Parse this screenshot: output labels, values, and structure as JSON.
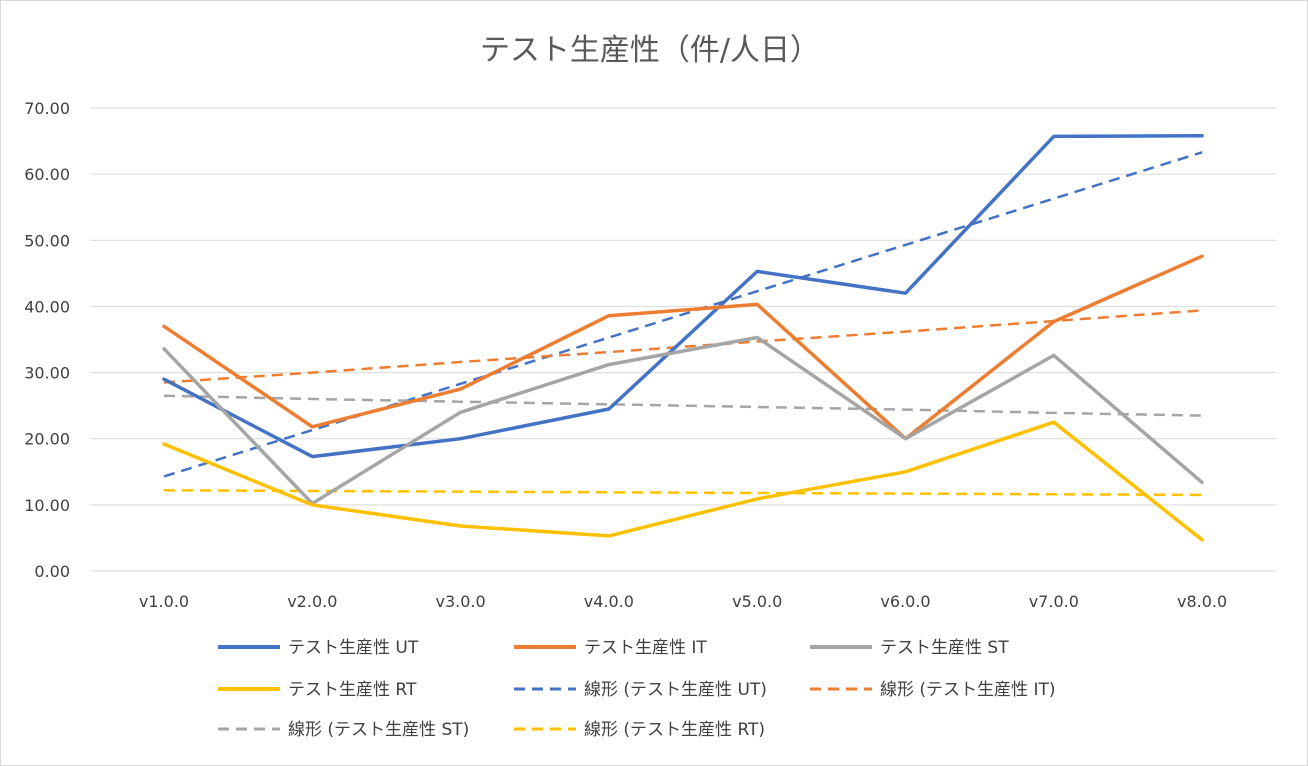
{
  "chart_data": {
    "type": "line",
    "title": "テスト生産性（件/人日）",
    "xlabel": "",
    "ylabel": "",
    "categories": [
      "v1.0.0",
      "v2.0.0",
      "v3.0.0",
      "v4.0.0",
      "v5.0.0",
      "v6.0.0",
      "v7.0.0",
      "v8.0.0"
    ],
    "ylim": [
      0,
      70
    ],
    "yticks": [
      "0.00",
      "10.00",
      "20.00",
      "30.00",
      "40.00",
      "50.00",
      "60.00",
      "70.00"
    ],
    "grid": true,
    "legend_position": "bottom",
    "series": [
      {
        "name": "テスト生産性 UT",
        "color": "#4472C4",
        "style": "solid",
        "values": [
          29.0,
          17.3,
          20.0,
          24.5,
          45.3,
          42.0,
          65.7,
          65.8
        ]
      },
      {
        "name": "テスト生産性 IT",
        "color": "#ED7D31",
        "style": "solid",
        "values": [
          37.0,
          21.8,
          27.5,
          38.6,
          40.3,
          20.0,
          37.7,
          47.6
        ]
      },
      {
        "name": "テスト生産性 ST",
        "color": "#A5A5A5",
        "style": "solid",
        "values": [
          33.6,
          10.2,
          24.0,
          31.2,
          35.3,
          20.0,
          32.6,
          13.4
        ]
      },
      {
        "name": "テスト生産性 RT",
        "color": "#FFC000",
        "style": "solid",
        "values": [
          19.2,
          10.0,
          6.8,
          5.3,
          10.9,
          15.0,
          22.5,
          4.7
        ]
      },
      {
        "name": "線形 (テスト生産性 UT)",
        "color": "#4472C4",
        "style": "dashed",
        "values": [
          14.3,
          21.3,
          28.3,
          35.3,
          42.3,
          49.3,
          56.3,
          63.3
        ]
      },
      {
        "name": "線形 (テスト生産性 IT)",
        "color": "#ED7D31",
        "style": "dashed",
        "values": [
          28.5,
          30.0,
          31.6,
          33.1,
          34.7,
          36.2,
          37.8,
          39.4
        ]
      },
      {
        "name": "線形 (テスト生産性 ST)",
        "color": "#A5A5A5",
        "style": "dashed",
        "values": [
          26.5,
          26.0,
          25.6,
          25.2,
          24.8,
          24.4,
          23.9,
          23.5
        ]
      },
      {
        "name": "線形 (テスト生産性 RT)",
        "color": "#FFC000",
        "style": "dashed",
        "values": [
          12.2,
          12.1,
          12.0,
          11.9,
          11.8,
          11.7,
          11.6,
          11.5
        ]
      }
    ]
  }
}
